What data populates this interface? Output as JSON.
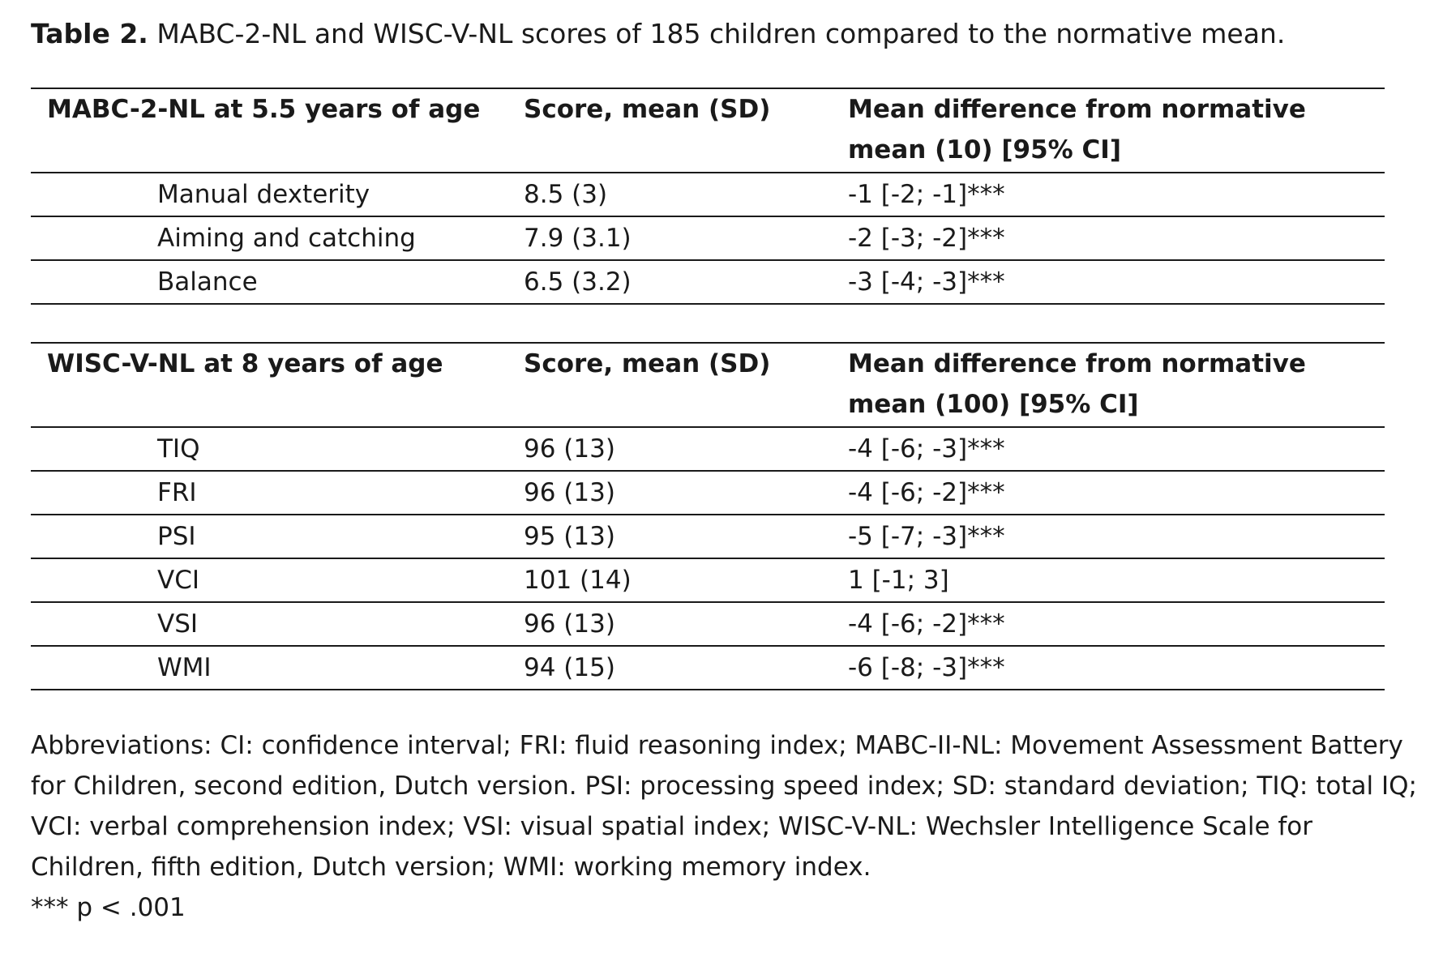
{
  "caption": {
    "label": "Table 2.",
    "text": " MABC-2-NL and WISC-V-NL scores of 185 children compared to the normative mean."
  },
  "table1": {
    "header": {
      "col1": "MABC-2-NL at 5.5 years of age",
      "col2": "Score, mean (SD)",
      "col3": "Mean difference from normative mean (10) [95% CI]"
    },
    "rows": [
      {
        "measure": "Manual dexterity",
        "score": "8.5 (3)",
        "diff": "-1 [-2; -1]***"
      },
      {
        "measure": "Aiming and catching",
        "score": "7.9 (3.1)",
        "diff": "-2 [-3; -2]***"
      },
      {
        "measure": "Balance",
        "score": "6.5 (3.2)",
        "diff": "-3 [-4; -3]***"
      }
    ]
  },
  "table2": {
    "header": {
      "col1": "WISC-V-NL at 8 years of age",
      "col2": "Score, mean (SD)",
      "col3": "Mean difference from normative mean (100) [95% CI]"
    },
    "rows": [
      {
        "measure": "TIQ",
        "score": "96 (13)",
        "diff": "-4 [-6; -3]***"
      },
      {
        "measure": "FRI",
        "score": "96 (13)",
        "diff": "-4 [-6; -2]***"
      },
      {
        "measure": "PSI",
        "score": "95 (13)",
        "diff": "-5 [-7; -3]***"
      },
      {
        "measure": "VCI",
        "score": "101 (14)",
        "diff": "1 [-1; 3]"
      },
      {
        "measure": "VSI",
        "score": "96 (13)",
        "diff": "-4 [-6; -2]***"
      },
      {
        "measure": "WMI",
        "score": "94 (15)",
        "diff": "-6 [-8; -3]***"
      }
    ]
  },
  "notes": {
    "abbreviations": "Abbreviations: CI: confidence interval; FRI: fluid reasoning index; MABC-II-NL: Movement Assessment Battery for Children, second edition, Dutch version. PSI: processing speed index; SD: standard deviation; TIQ: total IQ; VCI: verbal comprehension index; VSI: visual spatial index; WISC-V-NL: Wechsler Intelligence Scale for Children, fifth edition, Dutch version; WMI: working memory index.",
    "significance": "*** p < .001"
  }
}
